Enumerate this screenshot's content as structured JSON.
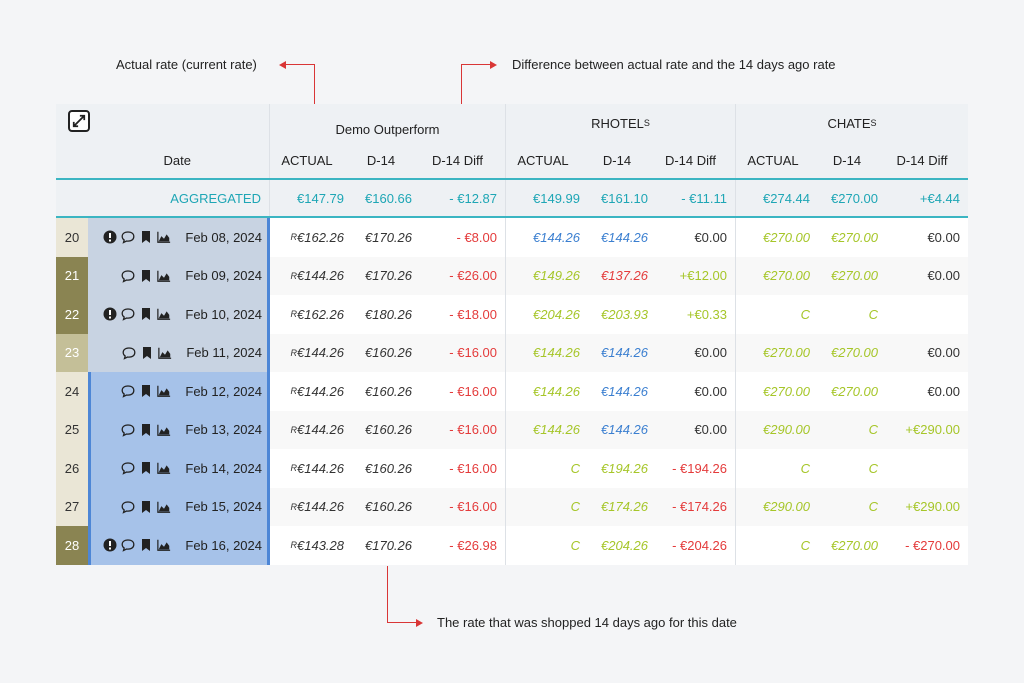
{
  "annotations": {
    "actual_rate": "Actual rate (current rate)",
    "difference": "Difference between actual rate and the 14 days ago rate",
    "d14_rate": "The rate that was shopped 14 days ago for this date"
  },
  "header": {
    "date_label": "Date",
    "groups": [
      {
        "name": "Demo Outperform",
        "sup": ""
      },
      {
        "name": "RHOTEL",
        "sup": "S"
      },
      {
        "name": "CHATE",
        "sup": "S"
      }
    ],
    "columns": [
      "ACTUAL",
      "D-14",
      "D-14 Diff"
    ]
  },
  "aggregated": {
    "label": "AGGREGATED",
    "values": [
      "€147.79",
      "€160.66",
      "- €12.87",
      "€149.99",
      "€161.10",
      "- €11.11",
      "€274.44",
      "€270.00",
      "+€4.44"
    ]
  },
  "rows": [
    {
      "num": "20",
      "date": "Feb 08, 2024",
      "alert": true,
      "v": [
        "€162.26",
        "€170.26",
        "- €8.00",
        "€144.26",
        "€144.26",
        "€0.00",
        "€270.00",
        "€270.00",
        "€0.00"
      ]
    },
    {
      "num": "21",
      "date": "Feb 09, 2024",
      "alert": false,
      "v": [
        "€144.26",
        "€170.26",
        "- €26.00",
        "€149.26",
        "€137.26",
        "+€12.00",
        "€270.00",
        "€270.00",
        "€0.00"
      ]
    },
    {
      "num": "22",
      "date": "Feb 10, 2024",
      "alert": true,
      "v": [
        "€162.26",
        "€180.26",
        "- €18.00",
        "€204.26",
        "€203.93",
        "+€0.33",
        "C",
        "C",
        ""
      ]
    },
    {
      "num": "23",
      "date": "Feb 11, 2024",
      "alert": false,
      "v": [
        "€144.26",
        "€160.26",
        "- €16.00",
        "€144.26",
        "€144.26",
        "€0.00",
        "€270.00",
        "€270.00",
        "€0.00"
      ]
    },
    {
      "num": "24",
      "date": "Feb 12, 2024",
      "alert": false,
      "v": [
        "€144.26",
        "€160.26",
        "- €16.00",
        "€144.26",
        "€144.26",
        "€0.00",
        "€270.00",
        "€270.00",
        "€0.00"
      ]
    },
    {
      "num": "25",
      "date": "Feb 13, 2024",
      "alert": false,
      "v": [
        "€144.26",
        "€160.26",
        "- €16.00",
        "€144.26",
        "€144.26",
        "€0.00",
        "€290.00",
        "C",
        "+€290.00"
      ]
    },
    {
      "num": "26",
      "date": "Feb 14, 2024",
      "alert": false,
      "v": [
        "€144.26",
        "€160.26",
        "- €16.00",
        "C",
        "€194.26",
        "- €194.26",
        "C",
        "C",
        ""
      ]
    },
    {
      "num": "27",
      "date": "Feb 15, 2024",
      "alert": false,
      "v": [
        "€144.26",
        "€160.26",
        "- €16.00",
        "C",
        "€174.26",
        "- €174.26",
        "€290.00",
        "C",
        "+€290.00"
      ]
    },
    {
      "num": "28",
      "date": "Feb 16, 2024",
      "alert": true,
      "v": [
        "€143.28",
        "€170.26",
        "- €26.98",
        "C",
        "€204.26",
        "- €204.26",
        "C",
        "€270.00",
        "- €270.00"
      ]
    }
  ],
  "rate_prefix": "R"
}
